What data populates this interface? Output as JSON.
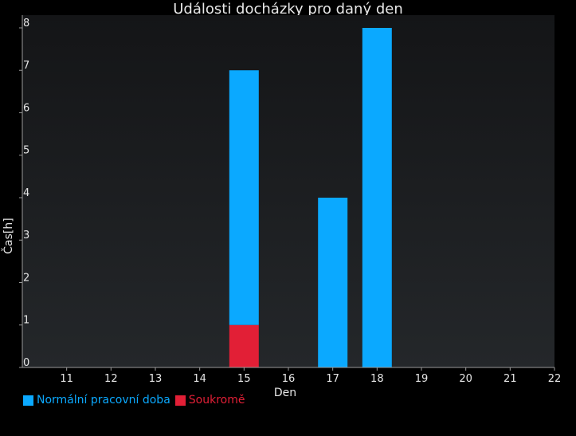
{
  "chart_data": {
    "type": "bar",
    "stacked": true,
    "title": "Události docházky pro daný den",
    "xlabel": "Den",
    "ylabel": "Čas[h]",
    "x": [
      11,
      12,
      13,
      14,
      15,
      16,
      17,
      18,
      19,
      20,
      21,
      22
    ],
    "xlim": [
      10,
      22
    ],
    "ylim": [
      0,
      8.3
    ],
    "yticks": [
      0,
      1,
      2,
      3,
      4,
      5,
      6,
      7,
      8
    ],
    "grid": false,
    "legend_position": "bottom-left",
    "series": [
      {
        "name": "Soukromě",
        "color": "#e21f36",
        "points": [
          {
            "x": 15,
            "y": 1
          }
        ]
      },
      {
        "name": "Normální pracovní doba",
        "color": "#0ba9ff",
        "points": [
          {
            "x": 15,
            "y": 6
          },
          {
            "x": 17,
            "y": 4
          },
          {
            "x": 18,
            "y": 8
          }
        ]
      }
    ],
    "legend_order": [
      "Normální pracovní doba",
      "Soukromě"
    ]
  }
}
